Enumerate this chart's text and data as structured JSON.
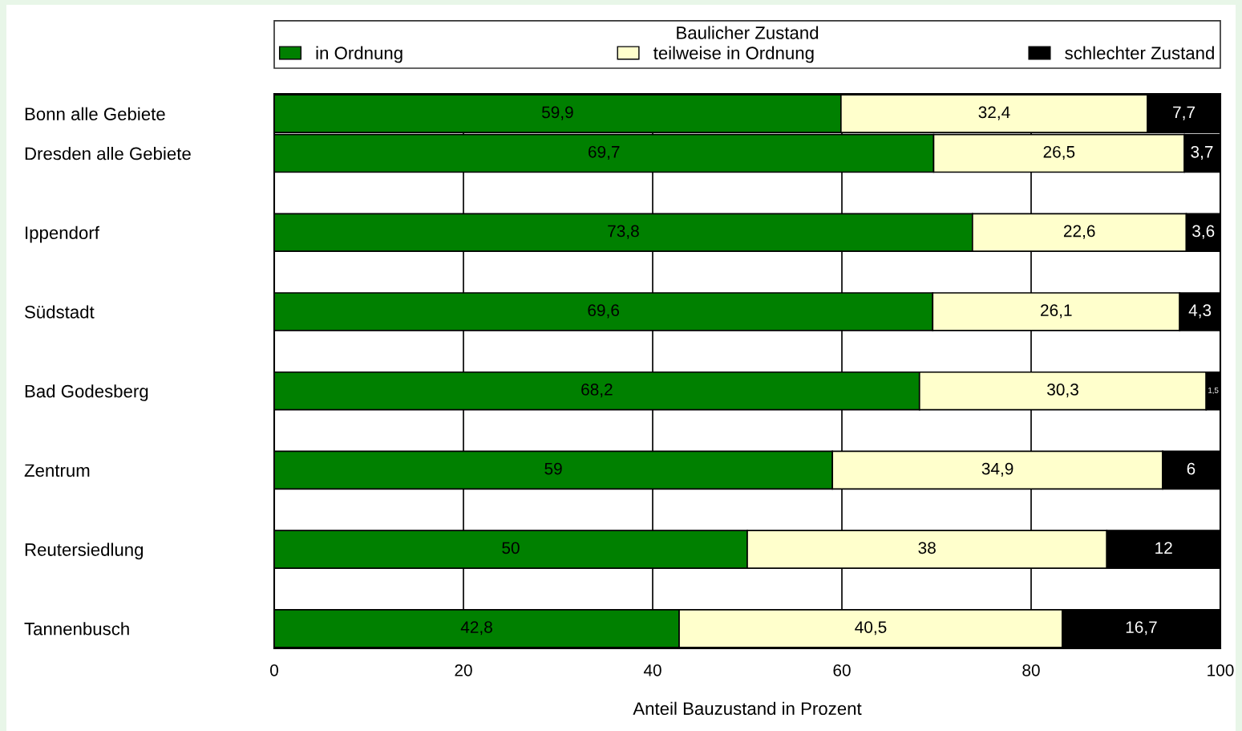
{
  "chart_data": {
    "type": "bar",
    "orientation": "horizontal",
    "stacked": true,
    "categories": [
      "Bonn alle Gebiete",
      "Dresden alle Gebiete",
      null,
      "Ippendorf",
      null,
      "Südstadt",
      null,
      "Bad Godesberg",
      null,
      "Zentrum",
      null,
      "Reutersiedlung",
      null,
      "Tannenbusch"
    ],
    "series": [
      {
        "name": "in Ordnung",
        "color": "#008000",
        "values": [
          59.9,
          69.7,
          null,
          73.8,
          null,
          69.6,
          null,
          68.2,
          null,
          59,
          null,
          50,
          null,
          42.8
        ],
        "value_labels": [
          "59,9",
          "69,7",
          null,
          "73,8",
          null,
          "69,6",
          null,
          "68,2",
          null,
          "59",
          null,
          "50",
          null,
          "42,8"
        ]
      },
      {
        "name": "teilweise in Ordnung",
        "color": "#ffffcc",
        "values": [
          32.4,
          26.5,
          null,
          22.6,
          null,
          26.1,
          null,
          30.3,
          null,
          34.9,
          null,
          38,
          null,
          40.5
        ],
        "value_labels": [
          "32,4",
          "26,5",
          null,
          "22,6",
          null,
          "26,1",
          null,
          "30,3",
          null,
          "34,9",
          null,
          "38",
          null,
          "40,5"
        ]
      },
      {
        "name": "schlechter Zustand",
        "color": "#000000",
        "values": [
          7.7,
          3.7,
          null,
          3.6,
          null,
          4.3,
          null,
          1.5,
          null,
          6,
          null,
          12,
          null,
          16.7
        ],
        "value_labels": [
          "7,7",
          "3,7",
          null,
          "3,6",
          null,
          "4,3",
          null,
          "1,5",
          null,
          "6",
          null,
          "12",
          null,
          "16,7"
        ]
      }
    ],
    "legend_title": "Baulicher Zustand",
    "legend": "top",
    "xlabel": "Anteil Bauzustand in Prozent",
    "xlim": [
      0,
      100
    ],
    "xticks": [
      0,
      20,
      40,
      60,
      80,
      100
    ],
    "grid": "x"
  }
}
